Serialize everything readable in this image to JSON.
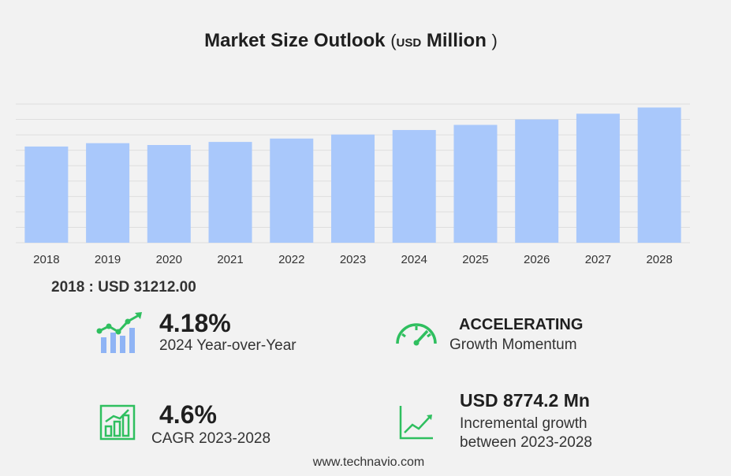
{
  "header": {
    "title": "Market Size Outlook",
    "paren_open": "(",
    "unit": "USD",
    "scale": "Million",
    "paren_close": ")"
  },
  "base_year_text": "2018 : USD  31212.00",
  "kpis": {
    "yoy": {
      "value": "4.18%",
      "label": "2024 Year-over-Year",
      "icon": "rising-bars-icon"
    },
    "momentum": {
      "value": "ACCELERATING",
      "label": "Growth Momentum",
      "icon": "speedometer-icon"
    },
    "cagr": {
      "value": "4.6%",
      "label": "CAGR 2023-2028",
      "icon": "bar-growth-icon"
    },
    "incremental": {
      "value": "USD 8774.2 Mn",
      "label_line1": "Incremental growth",
      "label_line2": "between 2023-2028",
      "icon": "trend-line-icon"
    }
  },
  "footer": {
    "source": "www.technavio.com"
  },
  "colors": {
    "bar": "#a9c8fb",
    "icon_green": "#2fbf5f",
    "icon_blue": "#8fb4f5"
  },
  "chart_data": {
    "type": "bar",
    "title": "Market Size Outlook (USD Million)",
    "categories": [
      "2018",
      "2019",
      "2020",
      "2021",
      "2022",
      "2023",
      "2024",
      "2025",
      "2026",
      "2027",
      "2028"
    ],
    "values": [
      31212.0,
      32300.0,
      31700.0,
      32700.0,
      33800.0,
      35100.0,
      36570.0,
      38230.0,
      40000.0,
      41860.0,
      43870.0
    ],
    "ylim": [
      0,
      45000
    ],
    "grid": true,
    "yticks_visible": false
  }
}
